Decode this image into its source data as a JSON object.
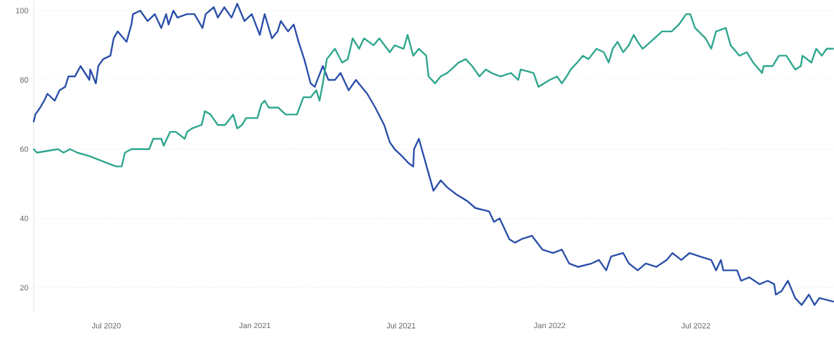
{
  "chart_data": {
    "type": "line",
    "xlim": [
      "2020-04-02",
      "2022-12-18"
    ],
    "ylim": [
      13,
      103
    ],
    "xticks": [
      {
        "value": "2020-07-01",
        "label": "Jul 2020"
      },
      {
        "value": "2021-01-01",
        "label": "Jan 2021"
      },
      {
        "value": "2021-07-01",
        "label": "Jul 2021"
      },
      {
        "value": "2022-01-01",
        "label": "Jan 2022"
      },
      {
        "value": "2022-07-01",
        "label": "Jul 2022"
      }
    ],
    "yticks": [
      20,
      40,
      60,
      80,
      100
    ],
    "grid": "y",
    "marker": "none",
    "line_style": "solid",
    "series": [
      {
        "color": "#2b4fa9",
        "x": [
          "2020-04-02",
          "2020-04-04",
          "2020-04-10",
          "2020-04-15",
          "2020-04-19",
          "2020-04-28",
          "2020-05-04",
          "2020-05-11",
          "2020-05-15",
          "2020-05-23",
          "2020-05-30",
          "2020-06-10",
          "2020-06-11",
          "2020-06-18",
          "2020-06-21",
          "2020-06-27",
          "2020-07-06",
          "2020-07-10",
          "2020-07-15",
          "2020-07-26",
          "2020-08-01",
          "2020-08-03",
          "2020-08-12",
          "2020-08-21",
          "2020-08-30",
          "2020-09-07",
          "2020-09-13",
          "2020-09-16",
          "2020-09-22",
          "2020-09-27",
          "2020-10-09",
          "2020-10-18",
          "2020-10-28",
          "2020-11-01",
          "2020-11-11",
          "2020-11-16",
          "2020-11-24",
          "2020-12-03",
          "2020-12-10",
          "2020-12-19",
          "2020-12-28",
          "2021-01-07",
          "2021-01-13",
          "2021-01-22",
          "2021-01-29",
          "2021-02-02",
          "2021-02-11",
          "2021-02-18",
          "2021-02-24",
          "2021-03-03",
          "2021-03-11",
          "2021-03-16",
          "2021-03-26",
          "2021-04-02",
          "2021-04-10",
          "2021-04-17",
          "2021-04-27",
          "2021-05-06",
          "2021-05-20",
          "2021-05-30",
          "2021-06-10",
          "2021-06-17",
          "2021-06-23",
          "2021-07-02",
          "2021-07-10",
          "2021-07-16",
          "2021-07-17",
          "2021-07-23",
          "2021-08-04",
          "2021-08-10",
          "2021-08-19",
          "2021-08-27",
          "2021-09-07",
          "2021-09-21",
          "2021-10-01",
          "2021-10-18",
          "2021-10-24",
          "2021-10-31",
          "2021-11-12",
          "2021-11-19",
          "2021-11-27",
          "2021-12-10",
          "2021-12-23",
          "2022-01-05",
          "2022-01-16",
          "2022-01-25",
          "2022-02-05",
          "2022-02-22",
          "2022-03-03",
          "2022-03-12",
          "2022-03-18",
          "2022-04-02",
          "2022-04-09",
          "2022-04-20",
          "2022-04-30",
          "2022-05-13",
          "2022-05-26",
          "2022-06-02",
          "2022-06-13",
          "2022-06-23",
          "2022-07-06",
          "2022-07-20",
          "2022-07-26",
          "2022-08-01",
          "2022-08-04",
          "2022-08-21",
          "2022-08-26",
          "2022-09-05",
          "2022-09-18",
          "2022-09-28",
          "2022-10-06",
          "2022-10-08",
          "2022-10-15",
          "2022-10-23",
          "2022-11-01",
          "2022-11-09",
          "2022-11-18",
          "2022-11-25",
          "2022-12-01",
          "2022-12-18"
        ],
        "values": [
          68,
          70,
          72,
          74,
          76,
          74,
          77,
          78,
          81,
          81,
          84,
          80,
          83,
          79,
          84,
          86,
          87,
          92,
          94,
          91,
          96,
          99,
          100,
          97,
          99,
          95,
          99,
          96,
          100,
          98,
          99,
          99,
          95,
          99,
          101,
          98,
          101,
          98,
          102,
          97,
          99,
          93,
          99,
          92,
          94,
          97,
          94,
          96,
          91,
          86,
          79,
          78,
          84,
          80,
          80,
          82,
          77,
          80,
          76,
          72,
          67,
          62,
          60,
          58,
          56,
          55,
          60,
          63,
          53,
          48,
          51,
          49,
          47,
          45,
          43,
          42,
          39,
          40,
          34,
          33,
          34,
          35,
          31,
          30,
          31,
          27,
          26,
          27,
          28,
          25,
          29,
          30,
          27,
          25,
          27,
          26,
          28,
          30,
          28,
          30,
          29,
          28,
          25,
          28,
          25,
          25,
          22,
          23,
          21,
          22,
          21,
          18,
          19,
          22,
          17,
          15,
          18,
          15,
          17,
          16
        ]
      },
      {
        "color": "#2ea68e",
        "x": [
          "2020-04-02",
          "2020-04-06",
          "2020-05-02",
          "2020-05-09",
          "2020-05-17",
          "2020-05-26",
          "2020-06-10",
          "2020-06-21",
          "2020-07-02",
          "2020-07-13",
          "2020-07-20",
          "2020-07-24",
          "2020-08-01",
          "2020-08-12",
          "2020-08-23",
          "2020-08-28",
          "2020-09-07",
          "2020-09-10",
          "2020-09-18",
          "2020-09-25",
          "2020-10-06",
          "2020-10-09",
          "2020-10-15",
          "2020-10-27",
          "2020-10-31",
          "2020-11-07",
          "2020-11-16",
          "2020-11-25",
          "2020-12-05",
          "2020-12-10",
          "2020-12-16",
          "2020-12-21",
          "2021-01-04",
          "2021-01-09",
          "2021-01-13",
          "2021-01-18",
          "2021-01-30",
          "2021-02-08",
          "2021-02-22",
          "2021-03-02",
          "2021-03-11",
          "2021-03-18",
          "2021-03-22",
          "2021-03-26",
          "2021-03-31",
          "2021-04-10",
          "2021-04-19",
          "2021-04-26",
          "2021-05-02",
          "2021-05-10",
          "2021-05-16",
          "2021-05-28",
          "2021-06-04",
          "2021-06-17",
          "2021-06-23",
          "2021-07-04",
          "2021-07-09",
          "2021-07-16",
          "2021-07-23",
          "2021-08-01",
          "2021-08-04",
          "2021-08-12",
          "2021-08-19",
          "2021-08-27",
          "2021-09-01",
          "2021-09-10",
          "2021-09-19",
          "2021-09-27",
          "2021-10-06",
          "2021-10-14",
          "2021-10-21",
          "2021-11-01",
          "2021-11-14",
          "2021-11-23",
          "2021-11-26",
          "2021-12-12",
          "2021-12-18",
          "2022-01-01",
          "2022-01-10",
          "2022-01-16",
          "2022-01-22",
          "2022-01-27",
          "2022-02-04",
          "2022-02-11",
          "2022-02-18",
          "2022-02-28",
          "2022-03-09",
          "2022-03-15",
          "2022-03-20",
          "2022-03-26",
          "2022-04-02",
          "2022-04-09",
          "2022-04-15",
          "2022-04-20",
          "2022-04-26",
          "2022-05-06",
          "2022-05-20",
          "2022-06-01",
          "2022-06-10",
          "2022-06-19",
          "2022-06-24",
          "2022-06-30",
          "2022-07-13",
          "2022-07-20",
          "2022-07-26",
          "2022-08-07",
          "2022-08-13",
          "2022-08-24",
          "2022-09-02",
          "2022-09-10",
          "2022-09-21",
          "2022-09-23",
          "2022-10-04",
          "2022-10-12",
          "2022-10-21",
          "2022-11-01",
          "2022-11-08",
          "2022-11-10",
          "2022-11-21",
          "2022-11-27",
          "2022-12-04",
          "2022-12-10",
          "2022-12-18"
        ],
        "values": [
          60,
          59,
          60,
          59,
          60,
          59,
          58,
          57,
          56,
          55,
          55,
          59,
          60,
          60,
          60,
          63,
          63,
          61,
          65,
          65,
          63,
          65,
          66,
          67,
          71,
          70,
          67,
          67,
          70,
          66,
          67,
          69,
          69,
          73,
          74,
          72,
          72,
          70,
          70,
          75,
          75,
          77,
          74,
          79,
          86,
          89,
          85,
          86,
          92,
          89,
          92,
          90,
          92,
          88,
          90,
          89,
          93,
          87,
          89,
          87,
          81,
          79,
          81,
          82,
          83,
          85,
          86,
          84,
          81,
          83,
          82,
          81,
          82,
          80,
          83,
          82,
          78,
          80,
          81,
          79,
          81,
          83,
          85,
          87,
          86,
          89,
          88,
          85,
          89,
          91,
          88,
          90,
          93,
          91,
          89,
          91,
          94,
          94,
          96,
          99,
          99,
          95,
          92,
          89,
          94,
          95,
          90,
          87,
          88,
          85,
          82,
          84,
          84,
          87,
          87,
          83,
          84,
          87,
          85,
          89,
          87,
          89,
          89
        ]
      }
    ]
  }
}
